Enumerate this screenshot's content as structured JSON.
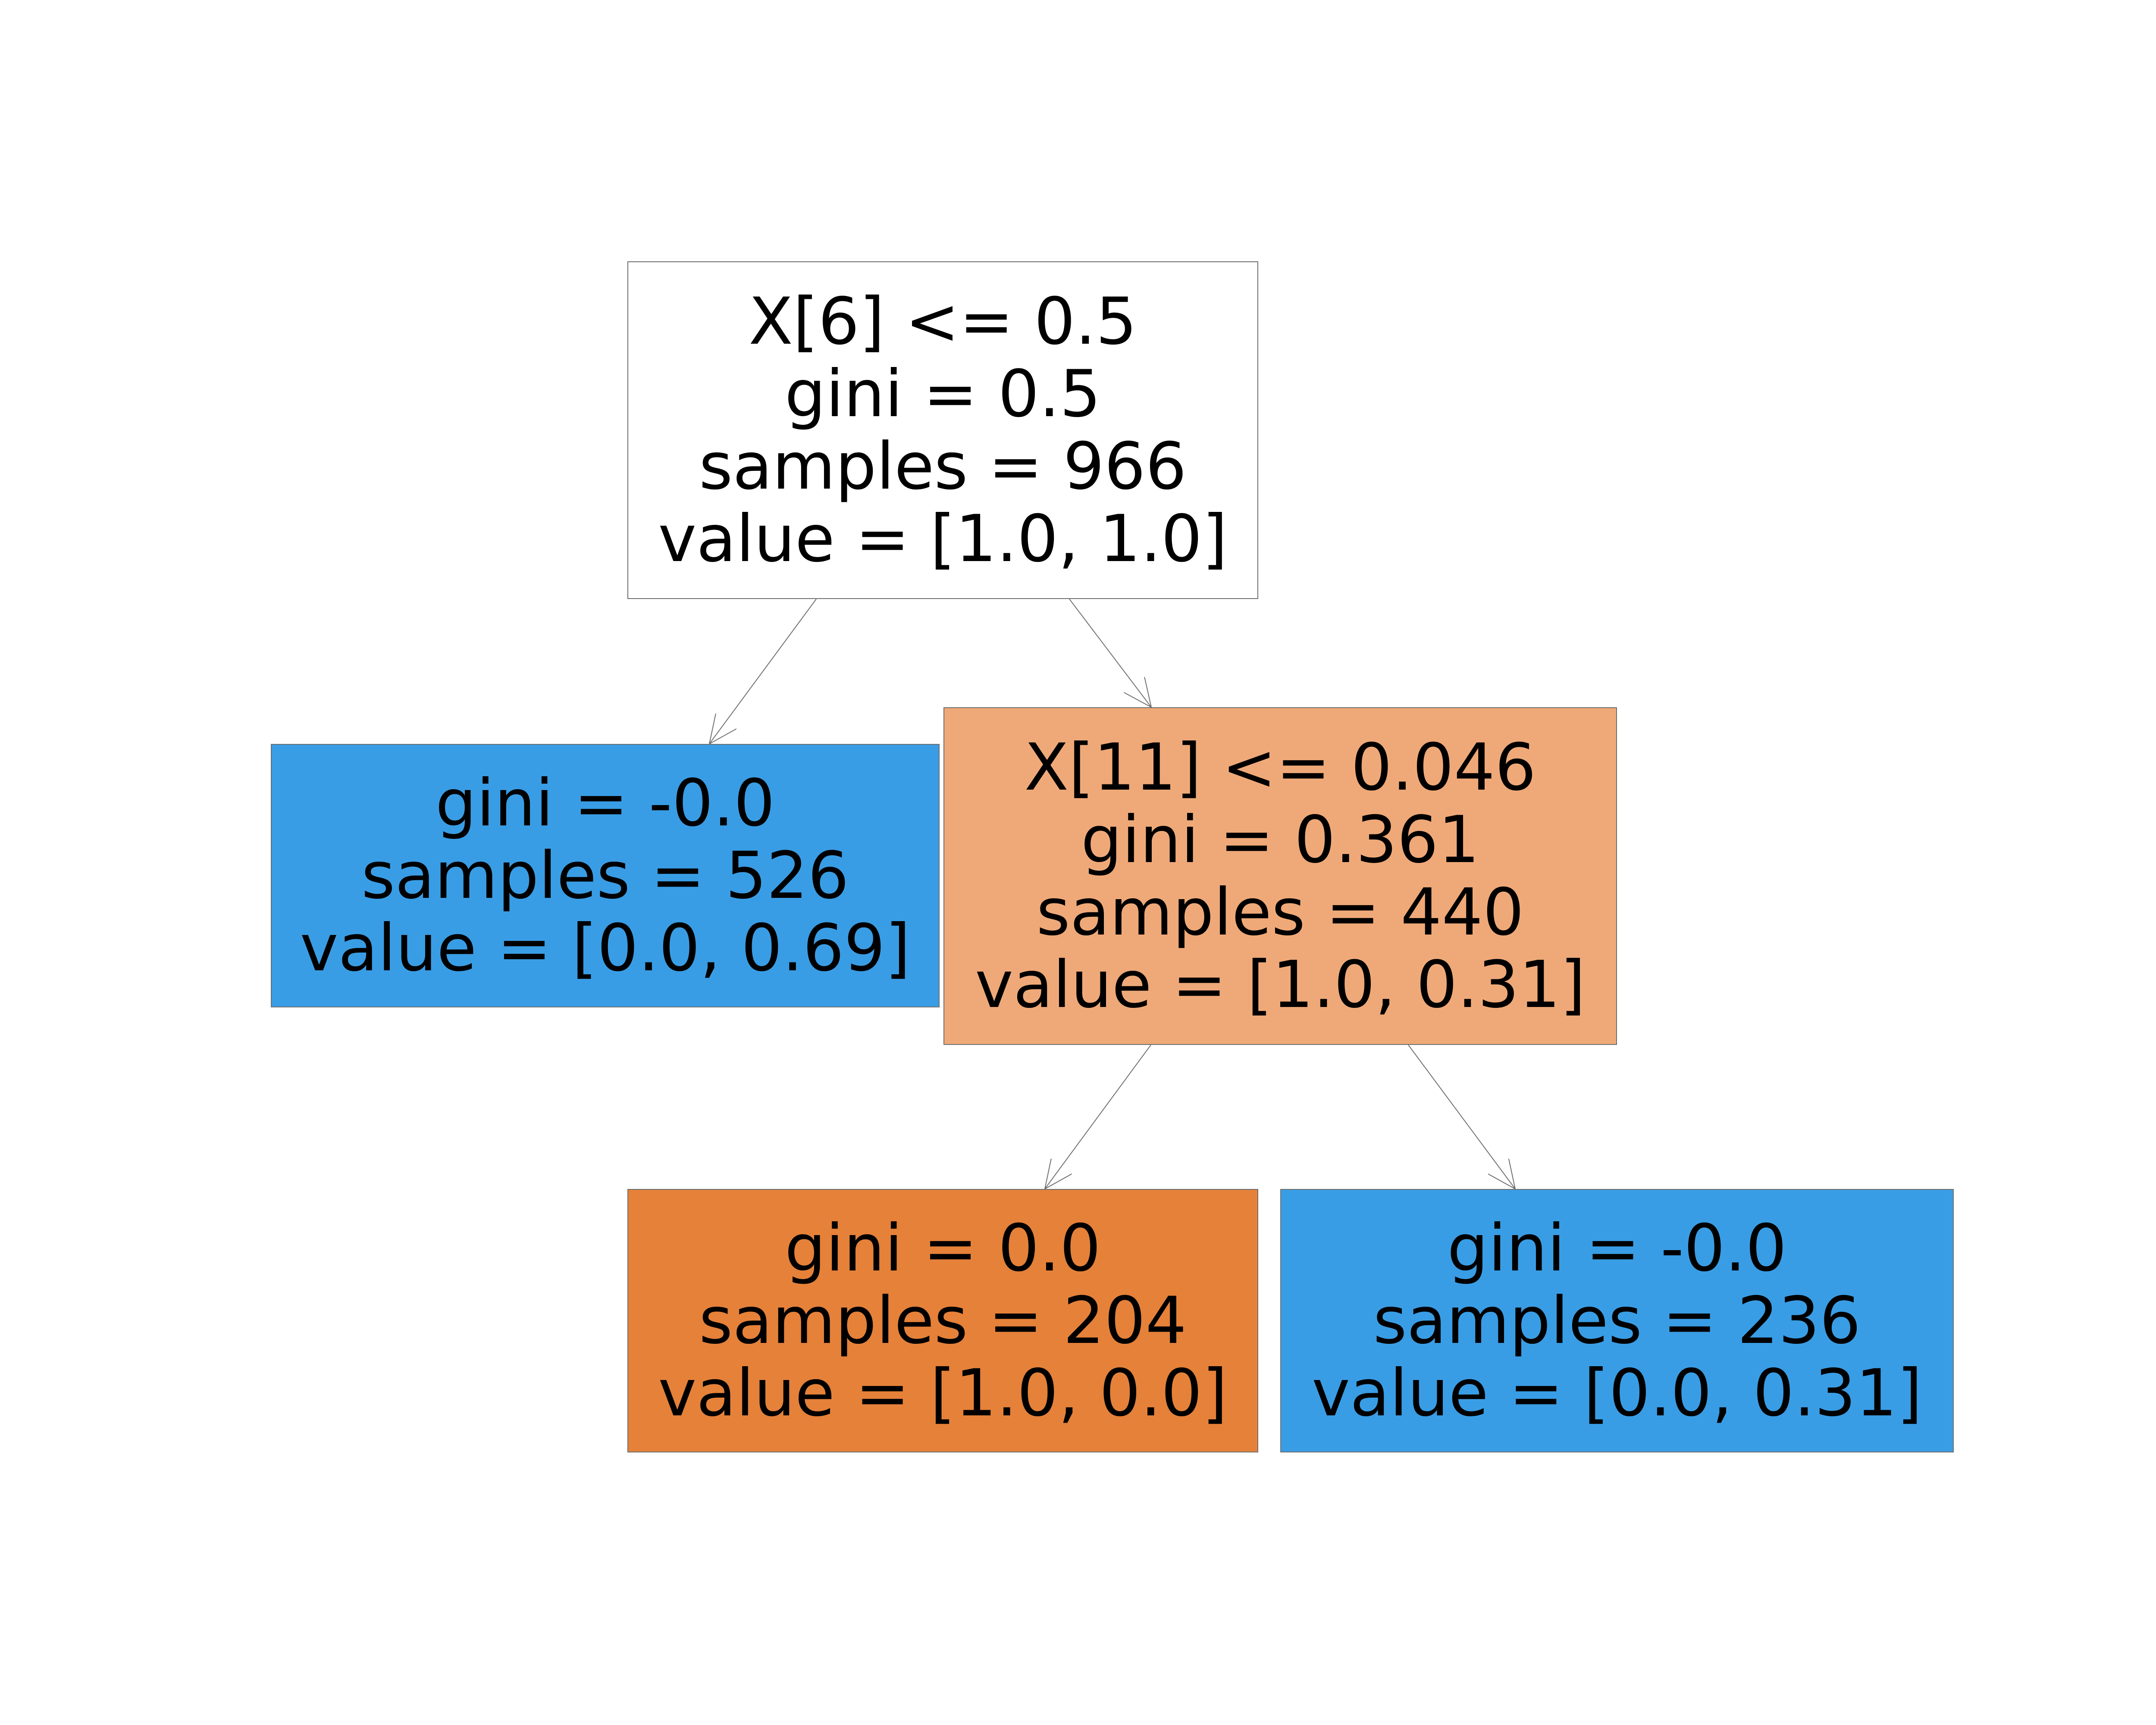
{
  "colors": {
    "node_white": "#ffffff",
    "node_blue": "#399de5",
    "node_light_orange": "#efa978",
    "node_orange": "#e58139",
    "edge": "#6e6e6e",
    "text": "#000000"
  },
  "tree": {
    "nodes": [
      {
        "id": 0,
        "color": "#ffffff",
        "lines": [
          "X[6] <= 0.5",
          "gini = 0.5",
          "samples = 966",
          "value = [1.0, 1.0]"
        ]
      },
      {
        "id": 1,
        "color": "#399de5",
        "lines": [
          "gini = -0.0",
          "samples = 526",
          "value = [0.0, 0.69]"
        ]
      },
      {
        "id": 2,
        "color": "#efa978",
        "lines": [
          "X[11] <= 0.046",
          "gini = 0.361",
          "samples = 440",
          "value = [1.0, 0.31]"
        ]
      },
      {
        "id": 3,
        "color": "#e58139",
        "lines": [
          "gini = 0.0",
          "samples = 204",
          "value = [1.0, 0.0]"
        ]
      },
      {
        "id": 4,
        "color": "#399de5",
        "lines": [
          "gini = -0.0",
          "samples = 236",
          "value = [0.0, 0.31]"
        ]
      }
    ],
    "edges": [
      {
        "from": 0,
        "to": 1
      },
      {
        "from": 0,
        "to": 2
      },
      {
        "from": 2,
        "to": 3
      },
      {
        "from": 2,
        "to": 4
      }
    ]
  }
}
